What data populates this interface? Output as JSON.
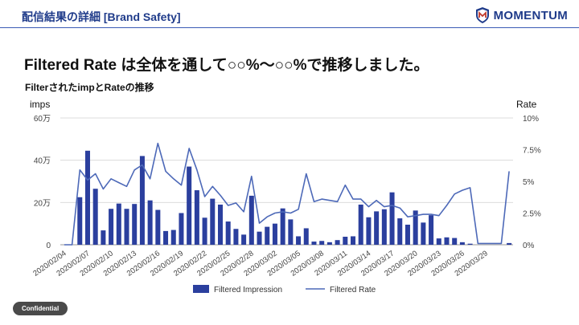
{
  "header": {
    "title": "配信結果の詳細 [Brand Safety]",
    "logo_text": "MOMENTUM",
    "line_color": "#3b5bb5"
  },
  "headline": "Filtered Rate は全体を通して○○%～○○%で推移しました。",
  "chart_data": {
    "type": "bar+line",
    "title": "FilterされたimpとRateの推移",
    "y_left_label": "imps",
    "y_right_label": "Rate",
    "y_left_ticks": [
      "0",
      "20万",
      "40万",
      "60万"
    ],
    "y_left_range": [
      0,
      600000
    ],
    "y_right_ticks": [
      "0%",
      "2.5%",
      "5%",
      "7.5%",
      "10%"
    ],
    "y_right_range": [
      0,
      10
    ],
    "x_tick_labels": [
      "2020/02/04",
      "2020/02/07",
      "2020/02/10",
      "2020/02/13",
      "2020/02/16",
      "2020/02/19",
      "2020/02/22",
      "2020/02/25",
      "2020/02/28",
      "2020/03/02",
      "2020/03/05",
      "2020/03/08",
      "2020/03/11",
      "2020/03/14",
      "2020/03/17",
      "2020/03/20",
      "2020/03/23",
      "2020/03/26",
      "2020/03/29"
    ],
    "series": [
      {
        "name": "Filtered Impression",
        "type": "bar",
        "color": "#2b3f9e",
        "values": [
          0,
          0,
          225000,
          445000,
          265000,
          68000,
          170000,
          195000,
          170000,
          193000,
          420000,
          210000,
          165000,
          65000,
          70000,
          150000,
          370000,
          258000,
          128000,
          218000,
          190000,
          110000,
          75000,
          48000,
          232000,
          62000,
          85000,
          100000,
          172000,
          120000,
          40000,
          78000,
          15000,
          18000,
          12000,
          22000,
          38000,
          40000,
          190000,
          130000,
          158000,
          168000,
          248000,
          125000,
          95000,
          162000,
          105000,
          140000,
          30000,
          35000,
          32000,
          12000,
          5000,
          0,
          0,
          0,
          0,
          8000
        ]
      },
      {
        "name": "Filtered Rate",
        "type": "line",
        "color": "#4d69b8",
        "values": [
          0,
          0,
          5.9,
          5.1,
          5.6,
          4.4,
          5.2,
          4.9,
          4.6,
          5.9,
          6.3,
          5.2,
          8.0,
          5.8,
          5.2,
          4.7,
          7.6,
          5.9,
          3.8,
          4.6,
          3.9,
          3.1,
          3.3,
          2.6,
          5.4,
          1.7,
          2.2,
          2.5,
          2.6,
          2.5,
          2.8,
          5.6,
          3.4,
          3.6,
          3.5,
          3.4,
          4.7,
          3.6,
          3.6,
          3.0,
          3.5,
          3.0,
          3.1,
          2.9,
          2.2,
          2.3,
          2.4,
          2.4,
          2.3,
          3.1,
          4.0,
          4.3,
          4.5,
          0.1,
          0.1,
          0.1,
          0.1,
          5.8
        ]
      }
    ],
    "legend_position": "bottom"
  },
  "footer": {
    "confidential_label": "Confidential"
  }
}
